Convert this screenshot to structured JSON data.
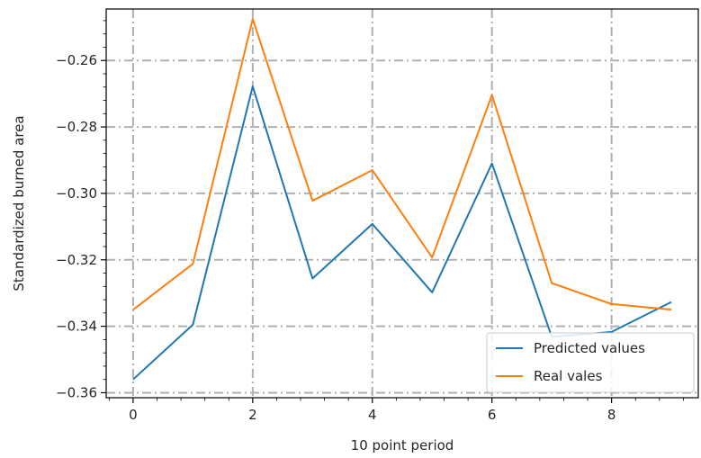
{
  "chart_data": {
    "type": "line",
    "title": "",
    "xlabel": "10 point period",
    "ylabel": "Standardized burned area",
    "x": [
      0,
      1,
      2,
      3,
      4,
      5,
      6,
      7,
      8,
      9
    ],
    "xlim": [
      -0.45,
      9.45
    ],
    "ylim": [
      -0.3615,
      -0.2445
    ],
    "xticks": [
      0,
      2,
      4,
      6,
      8
    ],
    "yticks": [
      -0.36,
      -0.34,
      -0.32,
      -0.3,
      -0.28,
      -0.26
    ],
    "ytick_labels": [
      "−0.36",
      "−0.34",
      "−0.32",
      "−0.30",
      "−0.28",
      "−0.26"
    ],
    "grid": true,
    "grid_style": "dash-dot",
    "legend_position": "lower-right",
    "series": [
      {
        "name": "Predicted values",
        "color": "#1f77b4",
        "values": [
          -0.356,
          -0.3395,
          -0.2678,
          -0.3256,
          -0.3092,
          -0.3298,
          -0.291,
          -0.3432,
          -0.3417,
          -0.3327
        ]
      },
      {
        "name": "Real vales",
        "color": "#ff7f0e",
        "values": [
          -0.335,
          -0.3212,
          -0.2475,
          -0.3022,
          -0.293,
          -0.3193,
          -0.2704,
          -0.327,
          -0.3333,
          -0.335
        ]
      }
    ]
  }
}
